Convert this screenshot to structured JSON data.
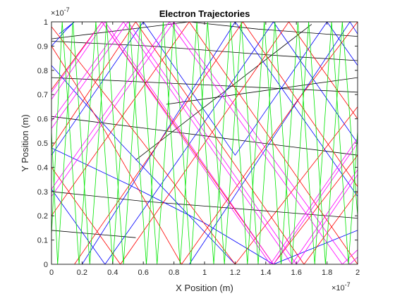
{
  "chart_data": {
    "type": "line",
    "title": "Electron Trajectories",
    "xlabel": "X Position (m)",
    "ylabel": "Y Position (m)",
    "x_exponent_label": "×10",
    "x_exponent_power": "-7",
    "y_exponent_label": "×10",
    "y_exponent_power": "-7",
    "xlim": [
      0,
      2
    ],
    "ylim": [
      0,
      1
    ],
    "x_ticks": [
      "0",
      "0.2",
      "0.4",
      "0.6",
      "0.8",
      "1",
      "1.2",
      "1.4",
      "1.6",
      "1.8",
      "2"
    ],
    "y_ticks": [
      "0",
      "0.1",
      "0.2",
      "0.3",
      "0.4",
      "0.5",
      "0.6",
      "0.7",
      "0.8",
      "0.9",
      "1"
    ],
    "grid": false,
    "series": [
      {
        "color": "#000000",
        "values": [
          [
            0,
            0.93
          ],
          [
            0.9,
            1.0
          ],
          [
            1.35,
            0.97
          ],
          [
            2.0,
            0.94
          ]
        ]
      },
      {
        "color": "#000000",
        "values": [
          [
            0,
            0.92
          ],
          [
            0.65,
            0.9
          ],
          [
            1.5,
            0.86
          ],
          [
            2.0,
            0.84
          ]
        ]
      },
      {
        "color": "#000000",
        "values": [
          [
            0,
            0.77
          ],
          [
            1.0,
            0.74
          ],
          [
            2.0,
            0.71
          ]
        ]
      },
      {
        "color": "#000000",
        "values": [
          [
            0,
            0.61
          ],
          [
            1.0,
            0.53
          ],
          [
            2.0,
            0.45
          ]
        ]
      },
      {
        "color": "#000000",
        "values": [
          [
            0,
            0.3
          ],
          [
            0.6,
            0.26
          ],
          [
            1.0,
            0.24
          ],
          [
            2.0,
            0.19
          ]
        ]
      },
      {
        "color": "#000000",
        "values": [
          [
            0,
            0.14
          ],
          [
            0.55,
            0.11
          ]
        ]
      },
      {
        "color": "#000000",
        "values": [
          [
            0.75,
            0.66
          ],
          [
            2.0,
            0.77
          ]
        ]
      },
      {
        "color": "#000000",
        "values": [
          [
            0.55,
            0.43
          ],
          [
            1.7,
            0.99
          ]
        ]
      },
      {
        "color": "#0000ff",
        "values": [
          [
            0,
            0.82
          ],
          [
            0.45,
            0.5
          ],
          [
            1.2,
            0.0
          ]
        ]
      },
      {
        "color": "#0000ff",
        "values": [
          [
            0,
            0.9
          ],
          [
            0.1,
            0.97
          ],
          [
            0.15,
            1.0
          ],
          [
            0.05,
            0.95
          ]
        ]
      },
      {
        "color": "#0000ff",
        "values": [
          [
            0,
            0.45
          ],
          [
            0.6,
            1.0
          ],
          [
            1.2,
            0.45
          ],
          [
            1.8,
            1.0
          ],
          [
            2.0,
            0.82
          ]
        ]
      },
      {
        "color": "#0000ff",
        "values": [
          [
            0,
            0.31
          ],
          [
            0.35,
            0.0
          ],
          [
            0.85,
            0.45
          ],
          [
            1.45,
            1.0
          ],
          [
            2.0,
            0.5
          ]
        ]
      },
      {
        "color": "#0000ff",
        "values": [
          [
            0.2,
            0.0
          ],
          [
            0.7,
            0.5
          ],
          [
            1.2,
            1.0
          ],
          [
            2.0,
            0.28
          ]
        ]
      },
      {
        "color": "#0000ff",
        "values": [
          [
            0,
            0.48
          ],
          [
            0.5,
            0.33
          ],
          [
            1.0,
            0.17
          ],
          [
            1.45,
            0.0
          ],
          [
            2.0,
            0.14
          ]
        ]
      },
      {
        "color": "#0000ff",
        "values": [
          [
            0.9,
            0.0
          ],
          [
            1.95,
            1.0
          ],
          [
            2.0,
            0.95
          ]
        ]
      },
      {
        "color": "#ff0000",
        "values": [
          [
            0,
            0.98
          ],
          [
            0.6,
            0.5
          ],
          [
            1.2,
            0.0
          ],
          [
            2.0,
            0.65
          ]
        ]
      },
      {
        "color": "#ff0000",
        "values": [
          [
            0,
            0.9
          ],
          [
            0.35,
            0.55
          ],
          [
            0.85,
            0.0
          ],
          [
            1.6,
            0.67
          ],
          [
            2.0,
            1.0
          ]
        ]
      },
      {
        "color": "#ff0000",
        "values": [
          [
            0,
            0.72
          ],
          [
            0.33,
            1.0
          ],
          [
            1.45,
            0.0
          ],
          [
            2.0,
            0.45
          ]
        ]
      },
      {
        "color": "#ff0000",
        "values": [
          [
            0,
            0.48
          ],
          [
            0.55,
            1.0
          ],
          [
            1.65,
            0.0
          ],
          [
            2.0,
            0.3
          ]
        ]
      },
      {
        "color": "#ff0000",
        "values": [
          [
            0,
            0.4
          ],
          [
            0.45,
            0.0
          ],
          [
            1.55,
            1.0
          ],
          [
            2.0,
            0.6
          ]
        ]
      },
      {
        "color": "#ff0000",
        "values": [
          [
            0,
            0.2
          ],
          [
            0.9,
            1.0
          ],
          [
            2.0,
            0.0
          ]
        ]
      },
      {
        "color": "#ff0000",
        "values": [
          [
            0.15,
            0.0
          ],
          [
            1.25,
            1.0
          ],
          [
            2.0,
            0.32
          ]
        ]
      },
      {
        "color": "#ff00ff",
        "values": [
          [
            0,
            0.68
          ],
          [
            0.35,
            1.0
          ],
          [
            1.45,
            0.0
          ],
          [
            2.0,
            0.5
          ]
        ]
      },
      {
        "color": "#ff00ff",
        "values": [
          [
            0,
            0.71
          ],
          [
            0.33,
            1.0
          ],
          [
            1.43,
            0.0
          ],
          [
            2.0,
            0.52
          ]
        ]
      },
      {
        "color": "#ff00ff",
        "values": [
          [
            0,
            0.56
          ],
          [
            0.5,
            1.0
          ],
          [
            1.6,
            0.0
          ],
          [
            2.0,
            0.37
          ]
        ]
      },
      {
        "color": "#ff00ff",
        "values": [
          [
            0,
            0.59
          ],
          [
            0.47,
            1.0
          ],
          [
            1.57,
            0.0
          ],
          [
            2.0,
            0.39
          ]
        ]
      },
      {
        "color": "#ff00ff",
        "values": [
          [
            0,
            0.28
          ],
          [
            0.8,
            1.0
          ],
          [
            1.95,
            0.0
          ],
          [
            2.0,
            0.03
          ]
        ]
      },
      {
        "color": "#ff00ff",
        "values": [
          [
            0,
            0.31
          ],
          [
            0.77,
            1.0
          ],
          [
            1.9,
            0.0
          ],
          [
            2.0,
            0.06
          ]
        ]
      },
      {
        "color": "#00e600",
        "values": [
          [
            0,
            0.55
          ],
          [
            0.04,
            0.0
          ],
          [
            0.14,
            1.0
          ],
          [
            0.25,
            0.0
          ],
          [
            0.36,
            1.0
          ],
          [
            0.47,
            0.0
          ],
          [
            0.58,
            1.0
          ],
          [
            0.69,
            0.0
          ],
          [
            0.8,
            1.0
          ],
          [
            0.91,
            0.0
          ],
          [
            1.02,
            1.0
          ],
          [
            1.13,
            0.0
          ],
          [
            1.24,
            1.0
          ],
          [
            1.35,
            0.0
          ],
          [
            1.46,
            1.0
          ],
          [
            1.57,
            0.0
          ],
          [
            1.68,
            1.0
          ],
          [
            1.79,
            0.0
          ],
          [
            1.9,
            1.0
          ],
          [
            2.0,
            0.2
          ]
        ]
      },
      {
        "color": "#00e600",
        "values": [
          [
            0,
            0.12
          ],
          [
            0.07,
            1.0
          ],
          [
            0.18,
            0.0
          ],
          [
            0.29,
            1.0
          ],
          [
            0.4,
            0.0
          ],
          [
            0.51,
            1.0
          ],
          [
            0.62,
            0.0
          ],
          [
            0.73,
            1.0
          ],
          [
            0.84,
            0.0
          ],
          [
            0.95,
            1.0
          ],
          [
            1.06,
            0.0
          ],
          [
            1.17,
            1.0
          ],
          [
            1.28,
            0.0
          ],
          [
            1.39,
            1.0
          ],
          [
            1.5,
            0.0
          ],
          [
            1.61,
            1.0
          ],
          [
            1.72,
            0.0
          ],
          [
            1.83,
            1.0
          ],
          [
            1.94,
            0.0
          ],
          [
            2.0,
            0.55
          ]
        ]
      }
    ]
  }
}
